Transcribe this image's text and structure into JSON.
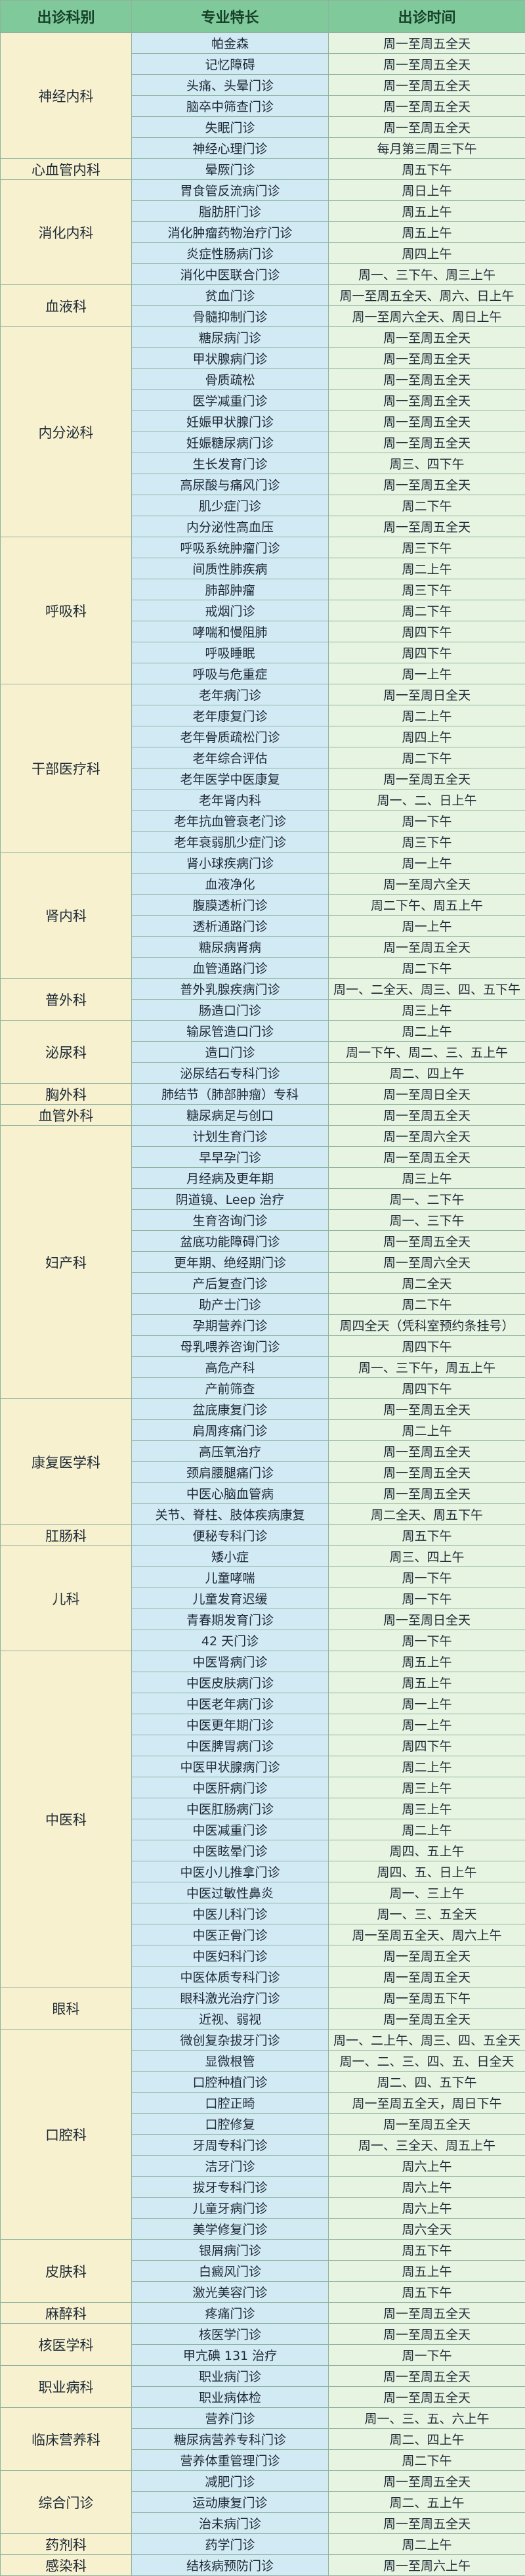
{
  "header": [
    "出诊科别",
    "专业特长",
    "出诊时间"
  ],
  "departments": [
    {
      "name": "神经内科",
      "rows": [
        [
          "帕金森",
          "周一至周五全天"
        ],
        [
          "记忆障碍",
          "周一至周五全天"
        ],
        [
          "头痛、头晕门诊",
          "周一至周五全天"
        ],
        [
          "脑卒中筛查门诊",
          "周一至周五全天"
        ],
        [
          "失眠门诊",
          "周一至周五全天"
        ],
        [
          "神经心理门诊",
          "每月第三周三下午"
        ]
      ]
    },
    {
      "name": "心血管内科",
      "rows": [
        [
          "晕厥门诊",
          "周五下午"
        ]
      ]
    },
    {
      "name": "消化内科",
      "rows": [
        [
          "胃食管反流病门诊",
          "周日上午"
        ],
        [
          "脂肪肝门诊",
          "周五上午"
        ],
        [
          "消化肿瘤药物治疗门诊",
          "周五上午"
        ],
        [
          "炎症性肠病门诊",
          "周四上午"
        ],
        [
          "消化中医联合门诊",
          "周一、三下午、周三上午"
        ]
      ]
    },
    {
      "name": "血液科",
      "rows": [
        [
          "贫血门诊",
          "周一至周五全天、周六、日上午"
        ],
        [
          "骨髓抑制门诊",
          "周一至周六全天、周日上午"
        ]
      ]
    },
    {
      "name": "内分泌科",
      "rows": [
        [
          "糖尿病门诊",
          "周一至周五全天"
        ],
        [
          "甲状腺病门诊",
          "周一至周五全天"
        ],
        [
          "骨质疏松",
          "周一至周五全天"
        ],
        [
          "医学减重门诊",
          "周一至周五全天"
        ],
        [
          "妊娠甲状腺门诊",
          "周一至周五全天"
        ],
        [
          "妊娠糖尿病门诊",
          "周一至周五全天"
        ],
        [
          "生长发育门诊",
          "周三、四下午"
        ],
        [
          "高尿酸与痛风门诊",
          "周一至周五全天"
        ],
        [
          "肌少症门诊",
          "周二下午"
        ],
        [
          "内分泌性高血压",
          "周一至周五全天"
        ]
      ]
    },
    {
      "name": "呼吸科",
      "rows": [
        [
          "呼吸系统肿瘤门诊",
          "周三下午"
        ],
        [
          "间质性肺疾病",
          "周二上午"
        ],
        [
          "肺部肿瘤",
          "周三下午"
        ],
        [
          "戒烟门诊",
          "周二下午"
        ],
        [
          "哮喘和慢阻肺",
          "周四下午"
        ],
        [
          "呼吸睡眠",
          "周四下午"
        ],
        [
          "呼吸与危重症",
          "周一上午"
        ]
      ]
    },
    {
      "name": "干部医疗科",
      "rows": [
        [
          "老年病门诊",
          "周一至周日全天"
        ],
        [
          "老年康复门诊",
          "周二上午"
        ],
        [
          "老年骨质疏松门诊",
          "周四上午"
        ],
        [
          "老年综合评估",
          "周二下午"
        ],
        [
          "老年医学中医康复",
          "周一至周五全天"
        ],
        [
          "老年肾内科",
          "周一、二、日上午"
        ],
        [
          "老年抗血管衰老门诊",
          "周一下午"
        ],
        [
          "老年衰弱肌少症门诊",
          "周三下午"
        ]
      ]
    },
    {
      "name": "肾内科",
      "rows": [
        [
          "肾小球疾病门诊",
          "周一上午"
        ],
        [
          "血液净化",
          "周一至周六全天"
        ],
        [
          "腹膜透析门诊",
          "周二下午、周五上午"
        ],
        [
          "透析通路门诊",
          "周一上午"
        ],
        [
          "糖尿病肾病",
          "周一至周五全天"
        ],
        [
          "血管通路门诊",
          "周二下午"
        ]
      ]
    },
    {
      "name": "普外科",
      "rows": [
        [
          "普外乳腺疾病门诊",
          "周一、二全天、周三、四、五下午"
        ],
        [
          "肠造口门诊",
          "周三上午"
        ]
      ]
    },
    {
      "name": "泌尿科",
      "rows": [
        [
          "输尿管造口门诊",
          "周二上午"
        ],
        [
          "造口门诊",
          "周一下午、周二、三、五上午"
        ],
        [
          "泌尿结石专科门诊",
          "周二、四上午"
        ]
      ]
    },
    {
      "name": "胸外科",
      "rows": [
        [
          "肺结节（肺部肿瘤）专科",
          "周一至周日全天"
        ]
      ]
    },
    {
      "name": "血管外科",
      "rows": [
        [
          "糖尿病足与创口",
          "周一至周五全天"
        ]
      ]
    },
    {
      "name": "妇产科",
      "rows": [
        [
          "计划生育门诊",
          "周一至周六全天"
        ],
        [
          "早早孕门诊",
          "周一至周五全天"
        ],
        [
          "月经病及更年期",
          "周三上午"
        ],
        [
          "阴道镜、Leep 治疗",
          "周一、二下午"
        ],
        [
          "生育咨询门诊",
          "周一、三下午"
        ],
        [
          "盆底功能障碍门诊",
          "周一至周五全天"
        ],
        [
          "更年期、绝经期门诊",
          "周一至周六全天"
        ],
        [
          "产后复查门诊",
          "周二全天"
        ],
        [
          "助产士门诊",
          "周二下午"
        ],
        [
          "孕期营养门诊",
          "周四全天（凭科室预约条挂号）"
        ],
        [
          "母乳喂养咨询门诊",
          "周四下午"
        ],
        [
          "高危产科",
          "周一、三下午，周五上午"
        ],
        [
          "产前筛查",
          "周四下午"
        ]
      ]
    },
    {
      "name": "康复医学科",
      "rows": [
        [
          "盆底康复门诊",
          "周一至周五全天"
        ],
        [
          "肩周疼痛门诊",
          "周二上午"
        ],
        [
          "高压氧治疗",
          "周一至周五全天"
        ],
        [
          "颈肩腰腿痛门诊",
          "周一至周五全天"
        ],
        [
          "中医心脑血管病",
          "周一至周五全天"
        ],
        [
          "关节、脊柱、肢体疾病康复",
          "周二全天、周五下午"
        ]
      ]
    },
    {
      "name": "肛肠科",
      "rows": [
        [
          "便秘专科门诊",
          "周五下午"
        ]
      ]
    },
    {
      "name": "儿科",
      "rows": [
        [
          "矮小症",
          "周三、四上午"
        ],
        [
          "儿童哮喘",
          "周一下午"
        ],
        [
          "儿童发育迟缓",
          "周一下午"
        ],
        [
          "青春期发育门诊",
          "周一至周日全天"
        ],
        [
          "42 天门诊",
          "周一下午"
        ]
      ]
    },
    {
      "name": "中医科",
      "rows": [
        [
          "中医肾病门诊",
          "周五上午"
        ],
        [
          "中医皮肤病门诊",
          "周五上午"
        ],
        [
          "中医老年病门诊",
          "周一上午"
        ],
        [
          "中医更年期门诊",
          "周一上午"
        ],
        [
          "中医脾胃病门诊",
          "周四下午"
        ],
        [
          "中医甲状腺病门诊",
          "周二上午"
        ],
        [
          "中医肝病门诊",
          "周三上午"
        ],
        [
          "中医肛肠病门诊",
          "周三上午"
        ],
        [
          "中医减重门诊",
          "周二上午"
        ],
        [
          "中医眩晕门诊",
          "周四、五上午"
        ],
        [
          "中医小儿推拿门诊",
          "周四、五、日上午"
        ],
        [
          "中医过敏性鼻炎",
          "周一、三上午"
        ],
        [
          "中医儿科门诊",
          "周一、三、五全天"
        ],
        [
          "中医正骨门诊",
          "周一至周五全天、周六上午"
        ],
        [
          "中医妇科门诊",
          "周一至周五全天"
        ],
        [
          "中医体质专科门诊",
          "周一至周五全天"
        ]
      ]
    },
    {
      "name": "眼科",
      "rows": [
        [
          "眼科激光治疗门诊",
          "周一至周五下午"
        ],
        [
          "近视、弱视",
          "周一至周五全天"
        ]
      ]
    },
    {
      "name": "口腔科",
      "rows": [
        [
          "微创复杂拔牙门诊",
          "周一、二上午、周三、四、五全天"
        ],
        [
          "显微根管",
          "周一、二、三、四、五、日全天"
        ],
        [
          "口腔种植门诊",
          "周二、四、五下午"
        ],
        [
          "口腔正畸",
          "周一至周五全天，周日下午"
        ],
        [
          "口腔修复",
          "周一至周五全天"
        ],
        [
          "牙周专科门诊",
          "周一、三全天、周五上午"
        ],
        [
          "洁牙门诊",
          "周六上午"
        ],
        [
          "拔牙专科门诊",
          "周六上午"
        ],
        [
          "儿童牙病门诊",
          "周六上午"
        ],
        [
          "美学修复门诊",
          "周六全天"
        ]
      ]
    },
    {
      "name": "皮肤科",
      "rows": [
        [
          "银屑病门诊",
          "周五下午"
        ],
        [
          "白癜风门诊",
          "周五上午"
        ],
        [
          "激光美容门诊",
          "周五下午"
        ]
      ]
    },
    {
      "name": "麻醉科",
      "rows": [
        [
          "疼痛门诊",
          "周一至周五全天"
        ]
      ]
    },
    {
      "name": "核医学科",
      "rows": [
        [
          "核医学门诊",
          "周一至周五全天"
        ],
        [
          "甲亢碘 131 治疗",
          "周一下午"
        ]
      ]
    },
    {
      "name": "职业病科",
      "rows": [
        [
          "职业病门诊",
          "周一至周五全天"
        ],
        [
          "职业病体检",
          "周一至周五全天"
        ]
      ]
    },
    {
      "name": "临床营养科",
      "rows": [
        [
          "营养门诊",
          "周一、三、五、六上午"
        ],
        [
          "糖尿病营养专科门诊",
          "周二、四上午"
        ],
        [
          "营养体重管理门诊",
          "周二下午"
        ]
      ]
    },
    {
      "name": "综合门诊",
      "rows": [
        [
          "减肥门诊",
          "周一至周五全天"
        ],
        [
          "运动康复门诊",
          "周二、五上午"
        ],
        [
          "治未病门诊",
          "周一至周五全天"
        ]
      ]
    },
    {
      "name": "药剂科",
      "rows": [
        [
          "药学门诊",
          "周二上午"
        ]
      ]
    },
    {
      "name": "感染科",
      "rows": [
        [
          "结核病预防门诊",
          "周一至周六上午"
        ]
      ]
    }
  ]
}
